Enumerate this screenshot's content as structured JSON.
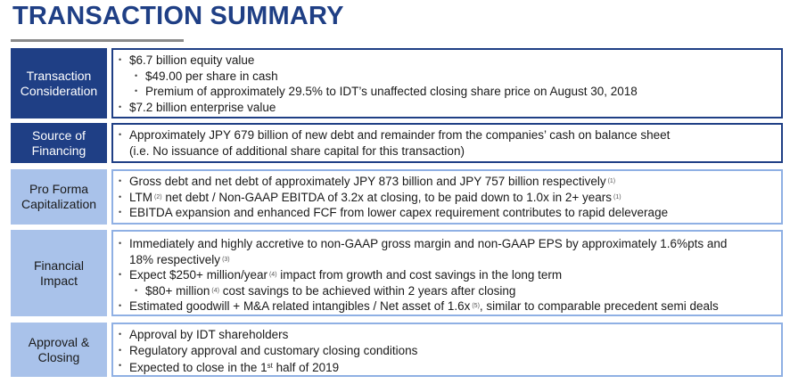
{
  "title": "TRANSACTION SUMMARY",
  "rows": [
    {
      "label_line1": "Transaction",
      "label_line2": "Consideration",
      "b1": "$6.7 billion equity value",
      "b1a": "$49.00 per share in cash",
      "b1b": "Premium of approximately 29.5% to IDT’s unaffected closing share price on August 30, 2018",
      "b2": "$7.2 billion enterprise value"
    },
    {
      "label_line1": "Source of",
      "label_line2": "Financing",
      "b1": "Approximately JPY 679 billion of new debt and remainder from the companies’ cash on balance sheet",
      "b1_cont": "(i.e. No issuance of additional share capital for this transaction)"
    },
    {
      "label_line1": "Pro Forma",
      "label_line2": "Capitalization",
      "b1": "Gross debt and net debt of approximately JPY 873 billion and JPY 757 billion respectively",
      "b1_fn": "(1)",
      "b2_pre": "LTM",
      "b2_fn1": "(2)",
      "b2_post": " net debt / Non-GAAP EBITDA of 3.2x at closing, to be paid down to 1.0x in 2+ years",
      "b2_fn2": "(1)",
      "b3": "EBITDA expansion and enhanced FCF from lower capex requirement contributes to rapid deleverage"
    },
    {
      "label_line1": "Financial",
      "label_line2": "Impact",
      "b1_line1": "Immediately and highly accretive to non-GAAP gross margin and non-GAAP EPS by approximately 1.6%pts and",
      "b1_line2": "18% respectively",
      "b1_fn": "(3)",
      "b2_pre": "Expect $250+ million/year",
      "b2_fn": "(4)",
      "b2_post": " impact from growth and cost savings in the long term",
      "b2a_pre": "$80+ million",
      "b2a_fn": "(4)",
      "b2a_post": " cost savings to be achieved within 2 years after closing",
      "b3_pre": "Estimated goodwill + M&A related intangibles / Net asset of 1.6x",
      "b3_fn": "(5)",
      "b3_post": ", similar to comparable precedent semi deals"
    },
    {
      "label_line1": "Approval &",
      "label_line2": "Closing",
      "b1": "Approval by IDT shareholders",
      "b2": "Regulatory approval and customary closing conditions",
      "b3_pre": "Expected to close in the 1",
      "b3_sup": "st",
      "b3_post": " half of 2019"
    }
  ]
}
